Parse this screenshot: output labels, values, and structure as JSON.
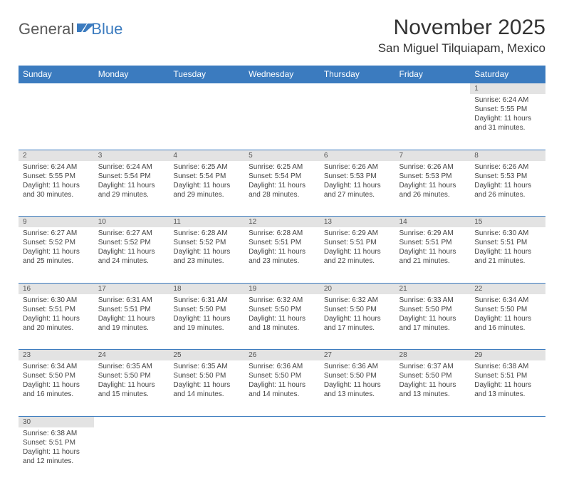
{
  "brand": {
    "part1": "General",
    "part2": "Blue"
  },
  "title": "November 2025",
  "location": "San Miguel Tilquiapam, Mexico",
  "colors": {
    "header_bg": "#3b7bbf",
    "header_text": "#ffffff",
    "daynum_bg": "#e3e3e3",
    "border": "#3b7bbf",
    "body_bg": "#ffffff",
    "text": "#444444"
  },
  "typography": {
    "title_fontsize": 30,
    "location_fontsize": 17,
    "header_fontsize": 12,
    "cell_fontsize": 10
  },
  "weekdays": [
    "Sunday",
    "Monday",
    "Tuesday",
    "Wednesday",
    "Thursday",
    "Friday",
    "Saturday"
  ],
  "weeks": [
    [
      null,
      null,
      null,
      null,
      null,
      null,
      {
        "d": "1",
        "sr": "Sunrise: 6:24 AM",
        "ss": "Sunset: 5:55 PM",
        "dl": "Daylight: 11 hours and 31 minutes."
      }
    ],
    [
      {
        "d": "2",
        "sr": "Sunrise: 6:24 AM",
        "ss": "Sunset: 5:55 PM",
        "dl": "Daylight: 11 hours and 30 minutes."
      },
      {
        "d": "3",
        "sr": "Sunrise: 6:24 AM",
        "ss": "Sunset: 5:54 PM",
        "dl": "Daylight: 11 hours and 29 minutes."
      },
      {
        "d": "4",
        "sr": "Sunrise: 6:25 AM",
        "ss": "Sunset: 5:54 PM",
        "dl": "Daylight: 11 hours and 29 minutes."
      },
      {
        "d": "5",
        "sr": "Sunrise: 6:25 AM",
        "ss": "Sunset: 5:54 PM",
        "dl": "Daylight: 11 hours and 28 minutes."
      },
      {
        "d": "6",
        "sr": "Sunrise: 6:26 AM",
        "ss": "Sunset: 5:53 PM",
        "dl": "Daylight: 11 hours and 27 minutes."
      },
      {
        "d": "7",
        "sr": "Sunrise: 6:26 AM",
        "ss": "Sunset: 5:53 PM",
        "dl": "Daylight: 11 hours and 26 minutes."
      },
      {
        "d": "8",
        "sr": "Sunrise: 6:26 AM",
        "ss": "Sunset: 5:53 PM",
        "dl": "Daylight: 11 hours and 26 minutes."
      }
    ],
    [
      {
        "d": "9",
        "sr": "Sunrise: 6:27 AM",
        "ss": "Sunset: 5:52 PM",
        "dl": "Daylight: 11 hours and 25 minutes."
      },
      {
        "d": "10",
        "sr": "Sunrise: 6:27 AM",
        "ss": "Sunset: 5:52 PM",
        "dl": "Daylight: 11 hours and 24 minutes."
      },
      {
        "d": "11",
        "sr": "Sunrise: 6:28 AM",
        "ss": "Sunset: 5:52 PM",
        "dl": "Daylight: 11 hours and 23 minutes."
      },
      {
        "d": "12",
        "sr": "Sunrise: 6:28 AM",
        "ss": "Sunset: 5:51 PM",
        "dl": "Daylight: 11 hours and 23 minutes."
      },
      {
        "d": "13",
        "sr": "Sunrise: 6:29 AM",
        "ss": "Sunset: 5:51 PM",
        "dl": "Daylight: 11 hours and 22 minutes."
      },
      {
        "d": "14",
        "sr": "Sunrise: 6:29 AM",
        "ss": "Sunset: 5:51 PM",
        "dl": "Daylight: 11 hours and 21 minutes."
      },
      {
        "d": "15",
        "sr": "Sunrise: 6:30 AM",
        "ss": "Sunset: 5:51 PM",
        "dl": "Daylight: 11 hours and 21 minutes."
      }
    ],
    [
      {
        "d": "16",
        "sr": "Sunrise: 6:30 AM",
        "ss": "Sunset: 5:51 PM",
        "dl": "Daylight: 11 hours and 20 minutes."
      },
      {
        "d": "17",
        "sr": "Sunrise: 6:31 AM",
        "ss": "Sunset: 5:51 PM",
        "dl": "Daylight: 11 hours and 19 minutes."
      },
      {
        "d": "18",
        "sr": "Sunrise: 6:31 AM",
        "ss": "Sunset: 5:50 PM",
        "dl": "Daylight: 11 hours and 19 minutes."
      },
      {
        "d": "19",
        "sr": "Sunrise: 6:32 AM",
        "ss": "Sunset: 5:50 PM",
        "dl": "Daylight: 11 hours and 18 minutes."
      },
      {
        "d": "20",
        "sr": "Sunrise: 6:32 AM",
        "ss": "Sunset: 5:50 PM",
        "dl": "Daylight: 11 hours and 17 minutes."
      },
      {
        "d": "21",
        "sr": "Sunrise: 6:33 AM",
        "ss": "Sunset: 5:50 PM",
        "dl": "Daylight: 11 hours and 17 minutes."
      },
      {
        "d": "22",
        "sr": "Sunrise: 6:34 AM",
        "ss": "Sunset: 5:50 PM",
        "dl": "Daylight: 11 hours and 16 minutes."
      }
    ],
    [
      {
        "d": "23",
        "sr": "Sunrise: 6:34 AM",
        "ss": "Sunset: 5:50 PM",
        "dl": "Daylight: 11 hours and 16 minutes."
      },
      {
        "d": "24",
        "sr": "Sunrise: 6:35 AM",
        "ss": "Sunset: 5:50 PM",
        "dl": "Daylight: 11 hours and 15 minutes."
      },
      {
        "d": "25",
        "sr": "Sunrise: 6:35 AM",
        "ss": "Sunset: 5:50 PM",
        "dl": "Daylight: 11 hours and 14 minutes."
      },
      {
        "d": "26",
        "sr": "Sunrise: 6:36 AM",
        "ss": "Sunset: 5:50 PM",
        "dl": "Daylight: 11 hours and 14 minutes."
      },
      {
        "d": "27",
        "sr": "Sunrise: 6:36 AM",
        "ss": "Sunset: 5:50 PM",
        "dl": "Daylight: 11 hours and 13 minutes."
      },
      {
        "d": "28",
        "sr": "Sunrise: 6:37 AM",
        "ss": "Sunset: 5:50 PM",
        "dl": "Daylight: 11 hours and 13 minutes."
      },
      {
        "d": "29",
        "sr": "Sunrise: 6:38 AM",
        "ss": "Sunset: 5:51 PM",
        "dl": "Daylight: 11 hours and 13 minutes."
      }
    ],
    [
      {
        "d": "30",
        "sr": "Sunrise: 6:38 AM",
        "ss": "Sunset: 5:51 PM",
        "dl": "Daylight: 11 hours and 12 minutes."
      },
      null,
      null,
      null,
      null,
      null,
      null
    ]
  ]
}
